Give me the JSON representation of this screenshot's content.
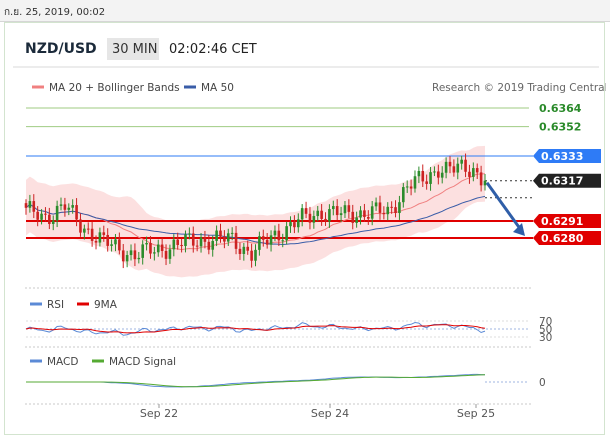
{
  "timestamp": "ก.ย. 25, 2019, 00:02",
  "header": {
    "symbol": "NZD/USD",
    "timeframe": "30 MIN",
    "time": "02:02:46 CET"
  },
  "legend": {
    "ma20_bb": "MA 20 + Bollinger Bands",
    "ma50": "MA 50",
    "credit": "Research © 2019 Trading Central"
  },
  "rsi_legend": {
    "rsi": "RSI",
    "ma9": "9MA"
  },
  "macd_legend": {
    "macd": "MACD",
    "signal": "MACD Signal"
  },
  "colors": {
    "resistance_green": "#9fcb82",
    "ma50_blue": "#3a5da8",
    "level_blue": "#2e7bf6",
    "support_red": "#e00000",
    "price_black": "#222222",
    "candle_up": "#2c8c2c",
    "candle_down": "#cc2222",
    "bollinger_fill": "#fbd5d5",
    "ma20_pink": "#f08080",
    "rsi_blue": "#5b8ad6",
    "macd_blue": "#5b8ad6",
    "macd_signal_green": "#55aa33",
    "arrow_blue": "#2f5ea8"
  },
  "chart_data": {
    "type": "candlestick",
    "x_ticks": [
      "Sep 22",
      "Sep 24",
      "Sep 25"
    ],
    "levels": [
      {
        "value": 0.6364,
        "label": "0.6364",
        "kind": "resistance"
      },
      {
        "value": 0.6352,
        "label": "0.6352",
        "kind": "resistance"
      },
      {
        "value": 0.6333,
        "label": "0.6333",
        "kind": "pivot"
      },
      {
        "value": 0.6317,
        "label": "0.6317",
        "kind": "last-price"
      },
      {
        "value": 0.6291,
        "label": "0.6291",
        "kind": "support"
      },
      {
        "value": 0.628,
        "label": "0.6280",
        "kind": "support"
      }
    ],
    "price_anchors": [
      [
        0,
        0.6297
      ],
      [
        5,
        0.6294
      ],
      [
        10,
        0.63
      ],
      [
        14,
        0.6289
      ],
      [
        20,
        0.6277
      ],
      [
        28,
        0.6269
      ],
      [
        36,
        0.6274
      ],
      [
        45,
        0.6279
      ],
      [
        53,
        0.6279
      ],
      [
        58,
        0.627
      ],
      [
        64,
        0.6282
      ],
      [
        70,
        0.6291
      ],
      [
        76,
        0.6297
      ],
      [
        82,
        0.6295
      ],
      [
        88,
        0.6297
      ],
      [
        93,
        0.6296
      ],
      [
        98,
        0.6314
      ],
      [
        103,
        0.6318
      ],
      [
        106,
        0.6326
      ],
      [
        110,
        0.6324
      ],
      [
        115,
        0.6325
      ],
      [
        118,
        0.6317
      ]
    ],
    "rsi_levels": [
      70,
      50,
      30
    ],
    "macd_zero": 0,
    "forecast": {
      "from": 0.6317,
      "to": 0.628
    }
  }
}
